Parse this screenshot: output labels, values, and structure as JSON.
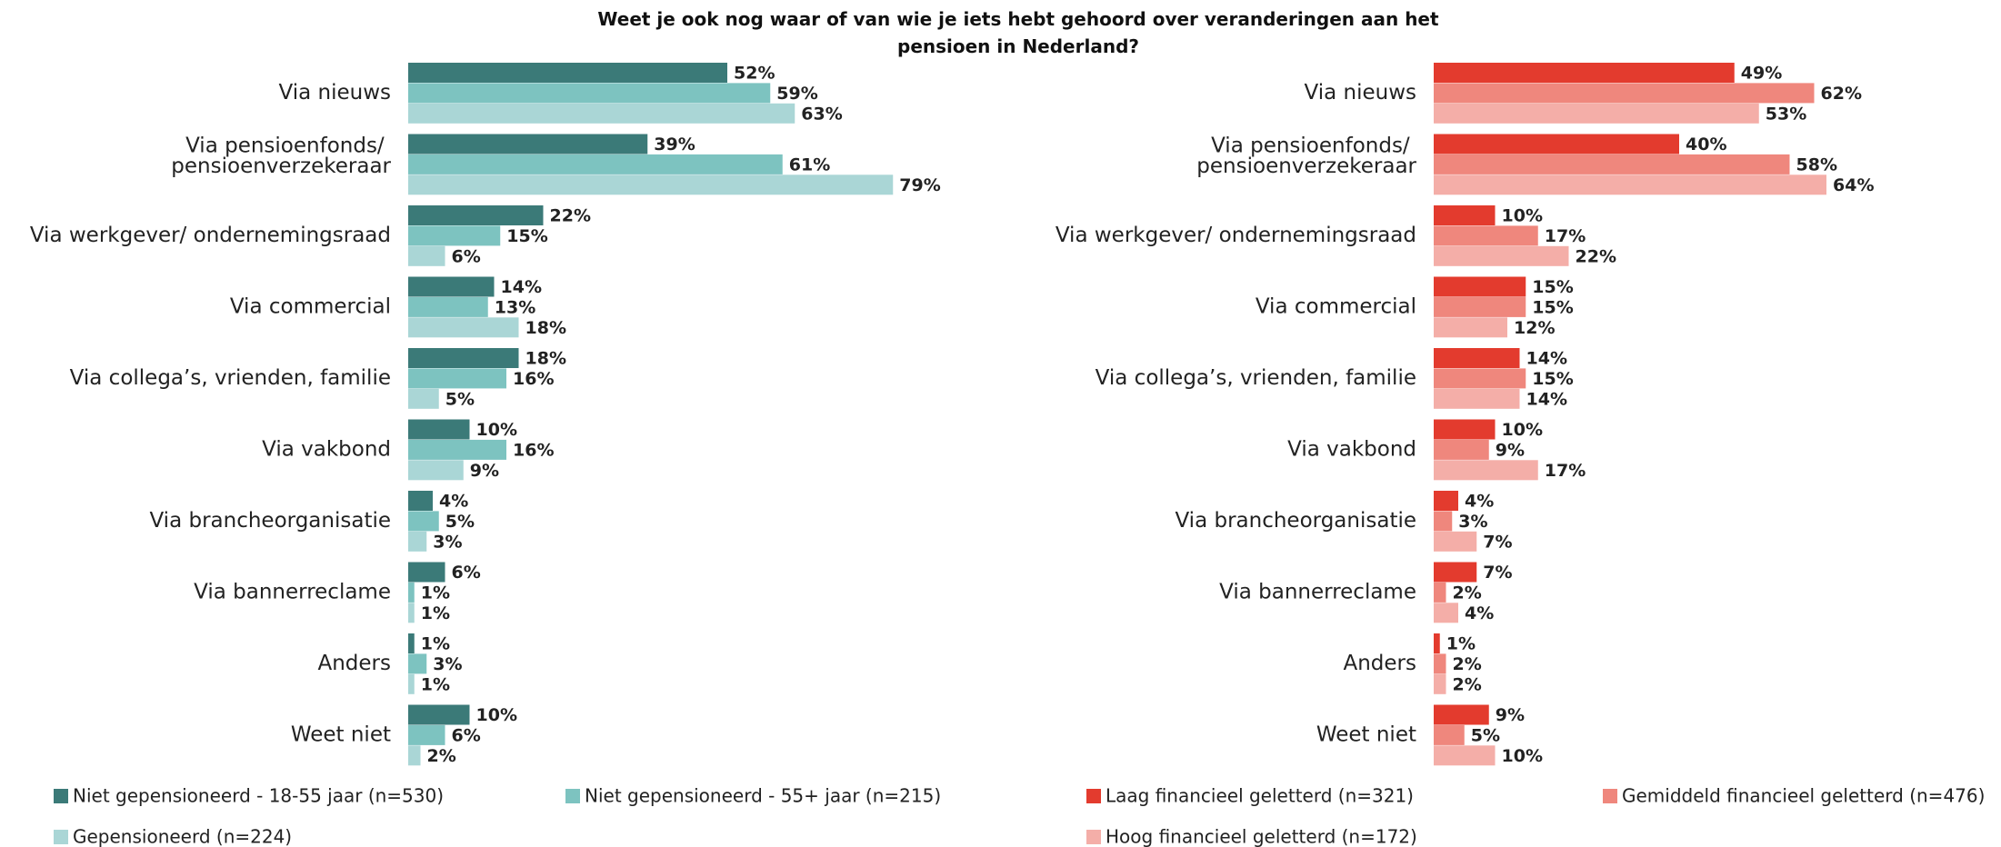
{
  "title": "Weet je ook nog waar of van wie je iets hebt gehoord over veranderingen aan het pensioen in Nederland?",
  "chart_data": [
    {
      "type": "bar",
      "orientation": "horizontal",
      "categories": [
        "Via nieuws",
        "Via pensioenfonds/ pensioenverzekeraar",
        "Via werkgever/ ondernemingsraad",
        "Via commercial",
        "Via collega’s, vrienden, familie",
        "Via vakbond",
        "Via brancheorganisatie",
        "Via bannerreclame",
        "Anders",
        "Weet niet"
      ],
      "series": [
        {
          "name": "Niet gepensioneerd - 18-55 jaar (n=530)",
          "color": "#3b7a78",
          "values": [
            52,
            39,
            22,
            14,
            18,
            10,
            4,
            6,
            1,
            10
          ],
          "value_labels": [
            "52%",
            "39%",
            "22%",
            "14%",
            "18%",
            "10%",
            "4%",
            "6%",
            "1%",
            "10%"
          ],
          "label_colors": [
            "#e07b45",
            "#e07b45",
            "#8fbf5a",
            "#222222",
            "#8fbf5a",
            "#222222",
            "#222222",
            "#8fbf5a",
            "#222222",
            "#8fbf5a"
          ]
        },
        {
          "name": "Niet gepensioneerd - 55+ jaar (n=215)",
          "color": "#7dc3c0",
          "values": [
            59,
            61,
            15,
            13,
            16,
            16,
            5,
            1,
            3,
            6
          ],
          "value_labels": [
            "59%",
            "61%",
            "15%",
            "13%",
            "16%",
            "16%",
            "5%",
            "1%",
            "3%",
            "6%"
          ],
          "label_colors": [
            "#222222",
            "#8fbf5a",
            "#222222",
            "#222222",
            "#222222",
            "#8fbf5a",
            "#222222",
            "#222222",
            "#222222",
            "#222222"
          ]
        },
        {
          "name": "Gepensioneerd (n=224)",
          "color": "#aad6d6",
          "values": [
            63,
            79,
            6,
            18,
            5,
            9,
            3,
            1,
            1,
            2
          ],
          "value_labels": [
            "63%",
            "79%",
            "6%",
            "18%",
            "5%",
            "9%",
            "3%",
            "1%",
            "1%",
            "2%"
          ],
          "label_colors": [
            "#222222",
            "#8fbf5a",
            "#e07b45",
            "#222222",
            "#e07b45",
            "#222222",
            "#222222",
            "#e07b45",
            "#222222",
            "#e07b45"
          ]
        }
      ]
    },
    {
      "type": "bar",
      "orientation": "horizontal",
      "categories": [
        "Via nieuws",
        "Via pensioenfonds/ pensioenverzekeraar",
        "Via werkgever/ ondernemingsraad",
        "Via commercial",
        "Via collega’s, vrienden, familie",
        "Via vakbond",
        "Via brancheorganisatie",
        "Via bannerreclame",
        "Anders",
        "Weet niet"
      ],
      "series": [
        {
          "name": "Laag financieel geletterd (n=321)",
          "color": "#e33b2e",
          "values": [
            49,
            40,
            10,
            15,
            14,
            10,
            4,
            7,
            1,
            9
          ],
          "value_labels": [
            "49%",
            "40%",
            "10%",
            "15%",
            "14%",
            "10%",
            "4%",
            "7%",
            "1%",
            "9%"
          ],
          "label_colors": [
            "#e07b45",
            "#e07b45",
            "#e07b45",
            "#222222",
            "#222222",
            "#222222",
            "#222222",
            "#8fbf5a",
            "#222222",
            "#222222"
          ]
        },
        {
          "name": "Gemiddeld financieel geletterd (n=476)",
          "color": "#ef877d",
          "values": [
            62,
            58,
            17,
            15,
            15,
            9,
            3,
            2,
            2,
            5
          ],
          "value_labels": [
            "62%",
            "58%",
            "17%",
            "15%",
            "15%",
            "9%",
            "3%",
            "2%",
            "2%",
            "5%"
          ],
          "label_colors": [
            "#8fbf5a",
            "#8fbf5a",
            "#222222",
            "#222222",
            "#222222",
            "#222222",
            "#222222",
            "#e07b45",
            "#222222",
            "#e07b45"
          ]
        },
        {
          "name": "Hoog financieel geletterd (n=172)",
          "color": "#f4aea8",
          "values": [
            53,
            64,
            22,
            12,
            14,
            17,
            7,
            4,
            2,
            10
          ],
          "value_labels": [
            "53%",
            "64%",
            "22%",
            "12%",
            "14%",
            "17%",
            "7%",
            "4%",
            "2%",
            "10%"
          ],
          "label_colors": [
            "#222222",
            "#8fbf5a",
            "#8fbf5a",
            "#222222",
            "#222222",
            "#8fbf5a",
            "#222222",
            "#222222",
            "#222222",
            "#222222"
          ]
        }
      ]
    }
  ]
}
